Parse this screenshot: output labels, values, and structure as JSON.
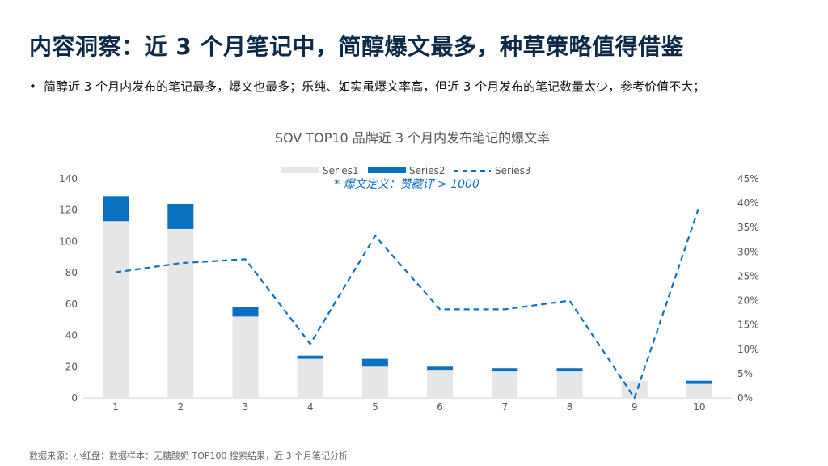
{
  "slide": {
    "title": "内容洞察：近 3 个月笔记中，简醇爆文最多，种草策略值得借鉴",
    "bullet": "简醇近 3 个月内发布的笔记最多，爆文也最多；乐纯、如实虽爆文率高，但近 3 个月发布的笔记数量太少，参考价值不大；",
    "bullet_marker": "•",
    "footer": "数据来源：小红盘；数据样本：无糖酸奶 TOP100 搜索结果，近 3 个月笔记分析"
  },
  "chart_data": {
    "type": "bar",
    "title": "SOV TOP10 品牌近  3 个月内发布笔记的爆文率",
    "annotation": "* 爆文定义：赞藏评 > 1000",
    "categories": [
      "1",
      "2",
      "3",
      "4",
      "5",
      "6",
      "7",
      "8",
      "9",
      "10"
    ],
    "series": [
      {
        "name": "Series1",
        "type": "bar",
        "stack": "notes",
        "axis": "left",
        "color": "#e6e6e6",
        "values": [
          113,
          108,
          52,
          25,
          20,
          18,
          17,
          17,
          11,
          9
        ]
      },
      {
        "name": "Series2",
        "type": "bar",
        "stack": "notes",
        "axis": "left",
        "color": "#0a70c0",
        "values": [
          16,
          16,
          6,
          2,
          5,
          2,
          2,
          2,
          0,
          2
        ]
      },
      {
        "name": "Series3",
        "type": "line",
        "style": "dashed",
        "axis": "right",
        "color": "#0a70c0",
        "values": [
          0.258,
          0.277,
          0.285,
          0.111,
          0.333,
          0.182,
          0.182,
          0.2,
          0.0,
          0.394
        ]
      }
    ],
    "y_left": {
      "min": 0,
      "max": 140,
      "ticks": [
        0,
        20,
        40,
        60,
        80,
        100,
        120,
        140
      ]
    },
    "y_right": {
      "min": 0,
      "max": 0.45,
      "ticks": [
        "0%",
        "5%",
        "10%",
        "15%",
        "20%",
        "25%",
        "30%",
        "35%",
        "40%",
        "45%"
      ]
    },
    "legend_position": "top",
    "grid": false
  }
}
